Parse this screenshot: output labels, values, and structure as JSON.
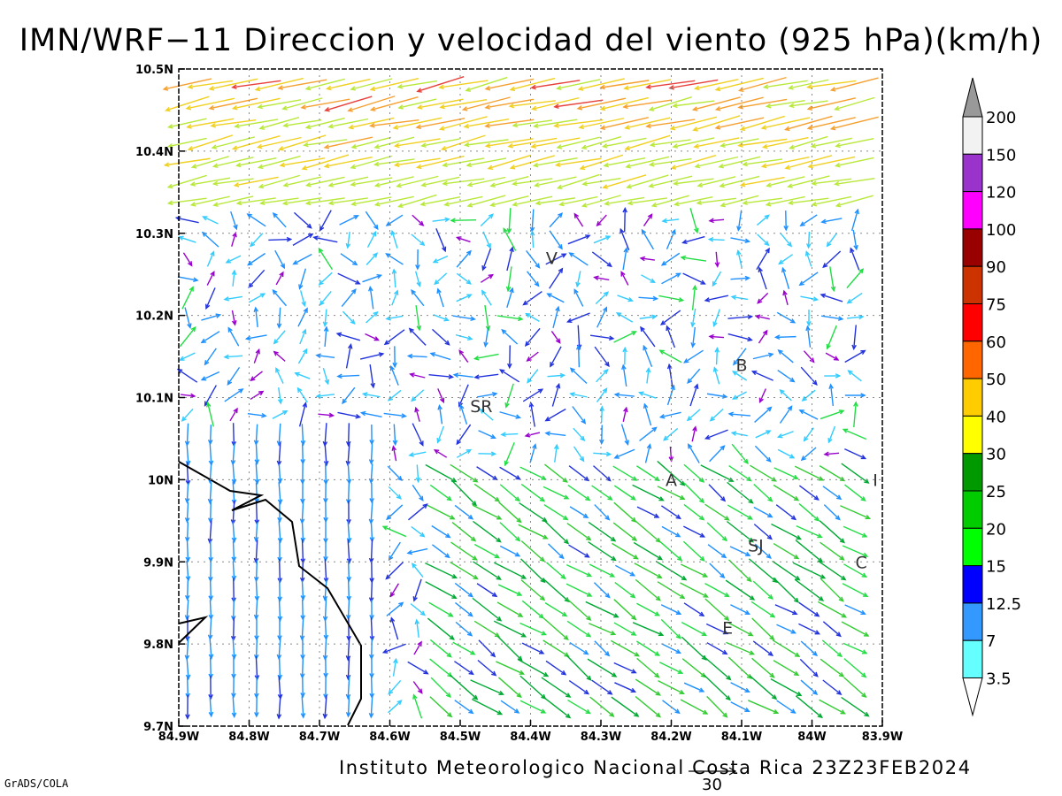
{
  "title": "IMN/WRF−11 Direccion y velocidad del viento (925 hPa)(km/h)",
  "footer": "Instituto Meteorologico Nacional Costa Rica 23Z23FEB2024",
  "credit": "GrADS/COLA",
  "reference_vector_label": "30",
  "map": {
    "lon_range": [
      -84.9,
      -83.9
    ],
    "lat_range": [
      9.7,
      10.5
    ],
    "lon_ticks": [
      {
        "v": -84.9,
        "label": "84.9W"
      },
      {
        "v": -84.8,
        "label": "84.8W"
      },
      {
        "v": -84.7,
        "label": "84.7W"
      },
      {
        "v": -84.6,
        "label": "84.6W"
      },
      {
        "v": -84.5,
        "label": "84.5W"
      },
      {
        "v": -84.4,
        "label": "84.4W"
      },
      {
        "v": -84.3,
        "label": "84.3W"
      },
      {
        "v": -84.2,
        "label": "84.2W"
      },
      {
        "v": -84.1,
        "label": "84.1W"
      },
      {
        "v": -84.0,
        "label": "84W"
      },
      {
        "v": -83.9,
        "label": "83.9W"
      }
    ],
    "lat_ticks": [
      {
        "v": 9.7,
        "label": "9.7N"
      },
      {
        "v": 9.8,
        "label": "9.8N"
      },
      {
        "v": 9.9,
        "label": "9.9N"
      },
      {
        "v": 10.0,
        "label": "10N"
      },
      {
        "v": 10.1,
        "label": "10.1N"
      },
      {
        "v": 10.2,
        "label": "10.2N"
      },
      {
        "v": 10.3,
        "label": "10.3N"
      },
      {
        "v": 10.4,
        "label": "10.4N"
      },
      {
        "v": 10.5,
        "label": "10.5N"
      }
    ],
    "grid": true,
    "places": [
      {
        "name": "V",
        "lon": -84.37,
        "lat": 10.27
      },
      {
        "name": "B",
        "lon": -84.1,
        "lat": 10.14
      },
      {
        "name": "SR",
        "lon": -84.47,
        "lat": 10.09
      },
      {
        "name": "A",
        "lon": -84.2,
        "lat": 10.0
      },
      {
        "name": "I",
        "lon": -83.91,
        "lat": 10.0
      },
      {
        "name": "SJ",
        "lon": -84.08,
        "lat": 9.92
      },
      {
        "name": "C",
        "lon": -83.93,
        "lat": 9.9
      },
      {
        "name": "E",
        "lon": -84.12,
        "lat": 9.82
      }
    ]
  },
  "colorbar": {
    "labels": [
      "200",
      "150",
      "120",
      "100",
      "90",
      "75",
      "60",
      "50",
      "40",
      "30",
      "25",
      "20",
      "15",
      "12.5",
      "7",
      "3.5"
    ],
    "colors": [
      "#f2f2f2",
      "#9933cc",
      "#ff00ff",
      "#990000",
      "#cc3300",
      "#ff0000",
      "#ff6600",
      "#ffcc00",
      "#ffff00",
      "#009900",
      "#00cc00",
      "#00ff00",
      "#0000ff",
      "#3399ff",
      "#66ffff"
    ],
    "upper_cap_color": "#999999",
    "lower_cap_color": "#ffffff"
  }
}
